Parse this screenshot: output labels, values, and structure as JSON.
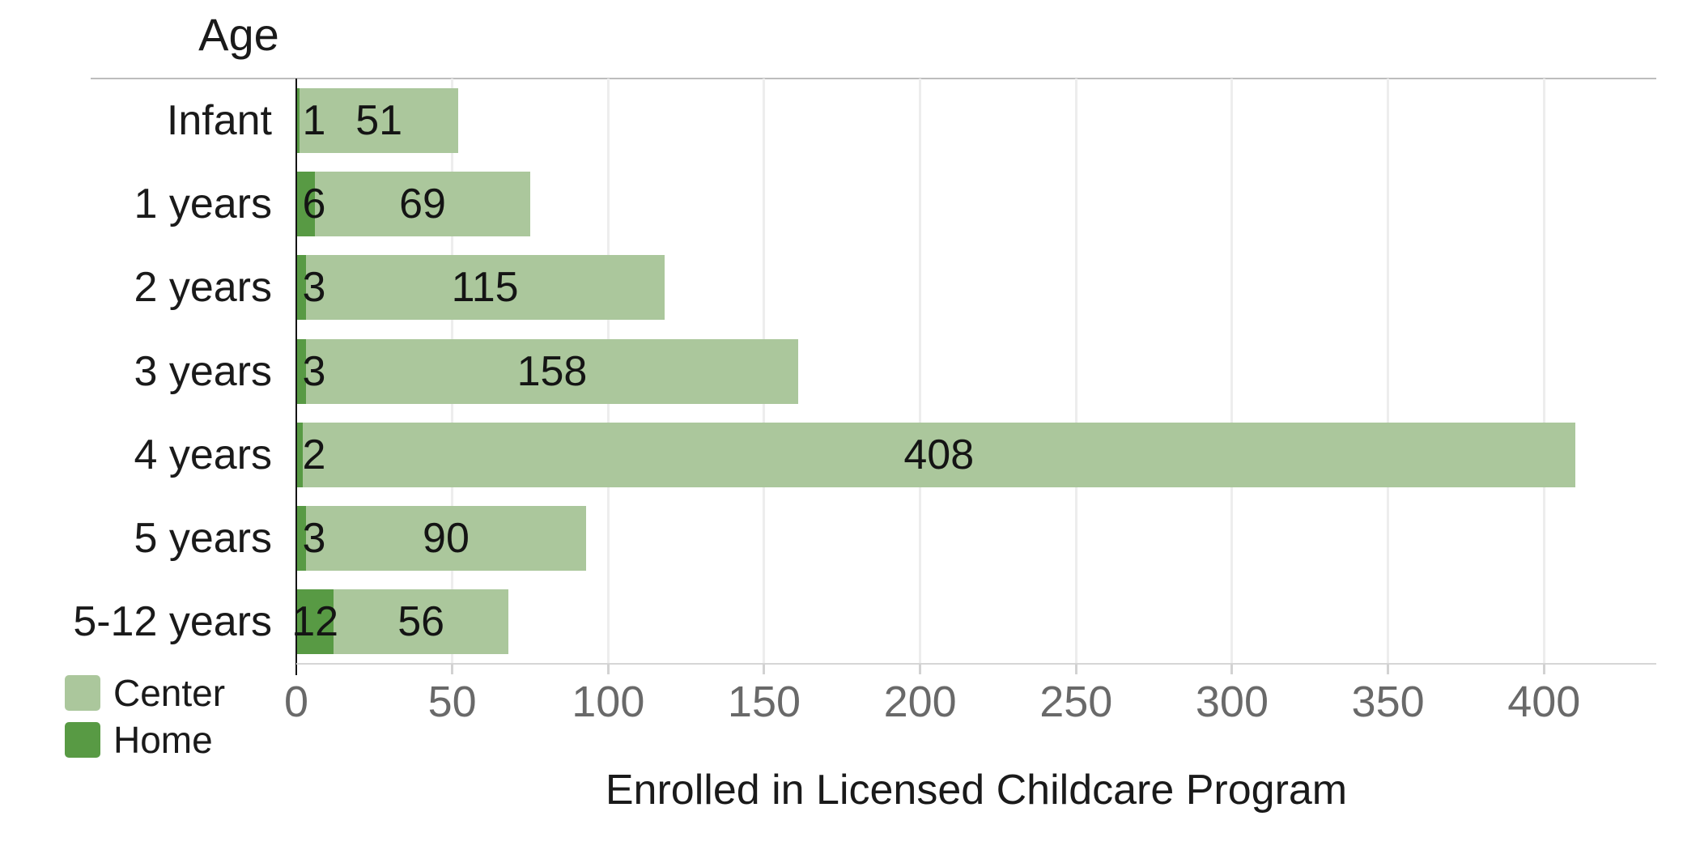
{
  "chart_data": {
    "type": "bar",
    "orientation": "horizontal",
    "stacked": true,
    "y_axis_title": "Age",
    "xlabel": "Enrolled in Licensed Childcare Program",
    "categories": [
      "Infant",
      "1 years",
      "2 years",
      "3 years",
      "4 years",
      "5 years",
      "5-12 years"
    ],
    "series": [
      {
        "name": "Home",
        "color": "#589a44",
        "values": [
          1,
          6,
          3,
          3,
          2,
          3,
          12
        ]
      },
      {
        "name": "Center",
        "color": "#abc79c",
        "values": [
          51,
          69,
          115,
          158,
          408,
          90,
          56
        ]
      }
    ],
    "x_ticks": [
      0,
      50,
      100,
      150,
      200,
      250,
      300,
      350,
      400
    ],
    "xlim": [
      0,
      436
    ],
    "grid": true,
    "legend": {
      "position": "bottom-left",
      "items": [
        {
          "label": "Center",
          "color": "#abc79c"
        },
        {
          "label": "Home",
          "color": "#589a44"
        }
      ]
    },
    "colors": {
      "gridline": "#ededed",
      "axis_line": "#141414",
      "top_border": "#bdbdbd",
      "bottom_border": "#d6d6d6",
      "tick_text": "#696969",
      "label_text": "#1a1a1a"
    }
  }
}
